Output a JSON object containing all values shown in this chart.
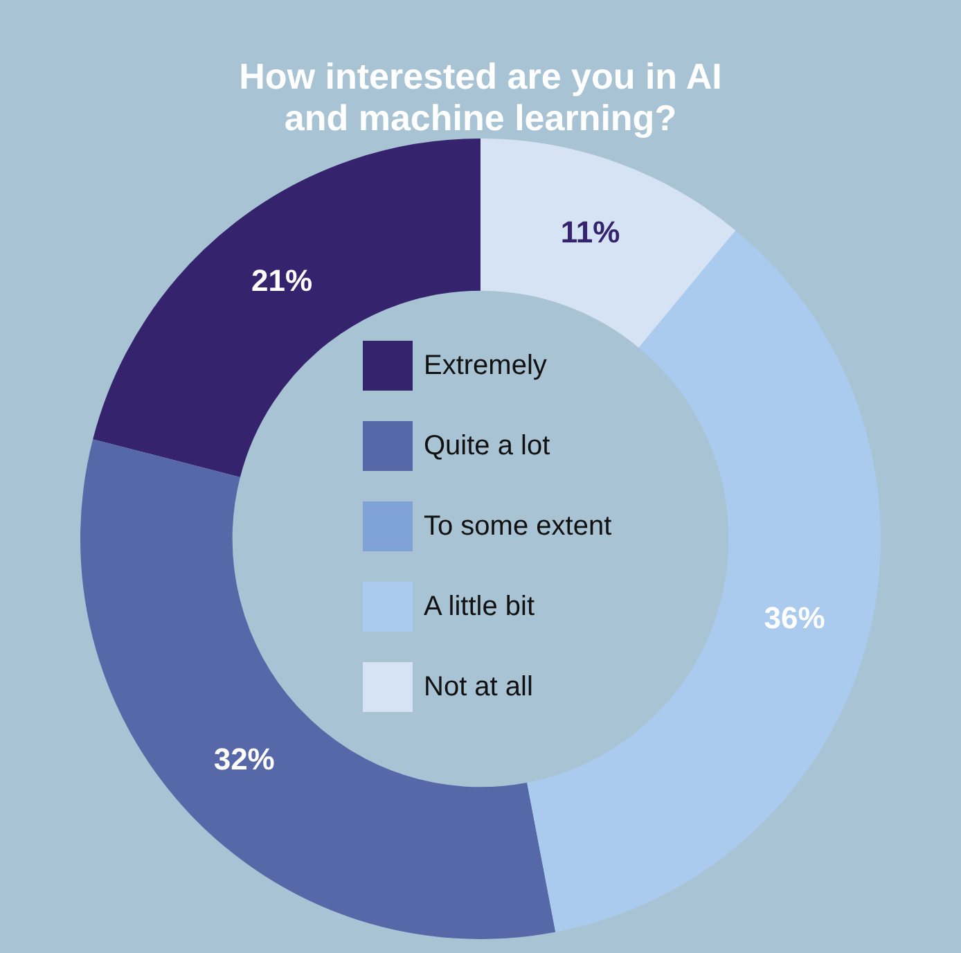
{
  "chart_data": {
    "type": "donut",
    "title": "How interested are you in AI and machine learning?",
    "categories": [
      "Extremely",
      "Quite a lot",
      "To some extent",
      "A little bit",
      "Not at all"
    ],
    "values": [
      21,
      32,
      0,
      36,
      11
    ],
    "colors": [
      "#35236e",
      "#5768a8",
      "#7fa3d6",
      "#abcbee",
      "#d5e3f5"
    ],
    "value_labels": [
      "21%",
      "32%",
      null,
      "36%",
      "11%"
    ],
    "legend": "center"
  }
}
